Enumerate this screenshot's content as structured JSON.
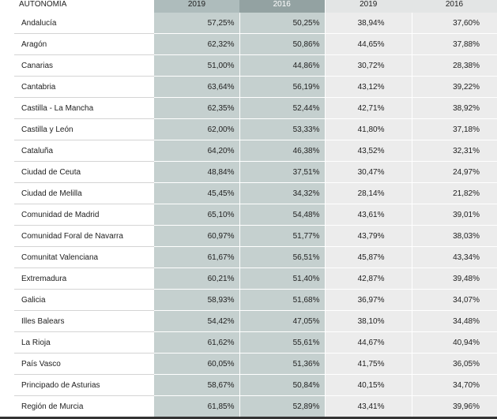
{
  "header": {
    "region_label": "AUTONOMÍA",
    "col_a": "2019",
    "col_b": "2016",
    "col_c": "2019",
    "col_d": "2016"
  },
  "rows": [
    {
      "region": "Andalucía",
      "a": "57,25%",
      "b": "50,25%",
      "c": "38,94%",
      "d": "37,60%"
    },
    {
      "region": "Aragón",
      "a": "62,32%",
      "b": "50,86%",
      "c": "44,65%",
      "d": "37,88%"
    },
    {
      "region": "Canarias",
      "a": "51,00%",
      "b": "44,86%",
      "c": "30,72%",
      "d": "28,38%"
    },
    {
      "region": "Cantabria",
      "a": "63,64%",
      "b": "56,19%",
      "c": "43,12%",
      "d": "39,22%"
    },
    {
      "region": "Castilla - La Mancha",
      "a": "62,35%",
      "b": "52,44%",
      "c": "42,71%",
      "d": "38,92%"
    },
    {
      "region": "Castilla y León",
      "a": "62,00%",
      "b": "53,33%",
      "c": "41,80%",
      "d": "37,18%"
    },
    {
      "region": "Cataluña",
      "a": "64,20%",
      "b": "46,38%",
      "c": "43,52%",
      "d": "32,31%"
    },
    {
      "region": "Ciudad de Ceuta",
      "a": "48,84%",
      "b": "37,51%",
      "c": "30,47%",
      "d": "24,97%"
    },
    {
      "region": "Ciudad de Melilla",
      "a": "45,45%",
      "b": "34,32%",
      "c": "28,14%",
      "d": "21,82%"
    },
    {
      "region": "Comunidad de Madrid",
      "a": "65,10%",
      "b": "54,48%",
      "c": "43,61%",
      "d": "39,01%"
    },
    {
      "region": "Comunidad Foral de Navarra",
      "a": "60,97%",
      "b": "51,77%",
      "c": "43,79%",
      "d": "38,03%"
    },
    {
      "region": "Comunitat Valenciana",
      "a": "61,67%",
      "b": "56,51%",
      "c": "45,87%",
      "d": "43,34%"
    },
    {
      "region": "Extremadura",
      "a": "60,21%",
      "b": "51,40%",
      "c": "42,87%",
      "d": "39,48%"
    },
    {
      "region": "Galicia",
      "a": "58,93%",
      "b": "51,68%",
      "c": "36,97%",
      "d": "34,07%"
    },
    {
      "region": "Illes Balears",
      "a": "54,42%",
      "b": "47,05%",
      "c": "38,10%",
      "d": "34,48%"
    },
    {
      "region": "La Rioja",
      "a": "61,62%",
      "b": "55,61%",
      "c": "44,67%",
      "d": "40,94%"
    },
    {
      "region": "País Vasco",
      "a": "60,05%",
      "b": "51,36%",
      "c": "41,75%",
      "d": "36,05%"
    },
    {
      "region": "Principado de Asturias",
      "a": "58,67%",
      "b": "50,84%",
      "c": "40,15%",
      "d": "34,70%"
    },
    {
      "region": "Región de Murcia",
      "a": "61,85%",
      "b": "52,89%",
      "c": "43,41%",
      "d": "39,96%"
    }
  ]
}
